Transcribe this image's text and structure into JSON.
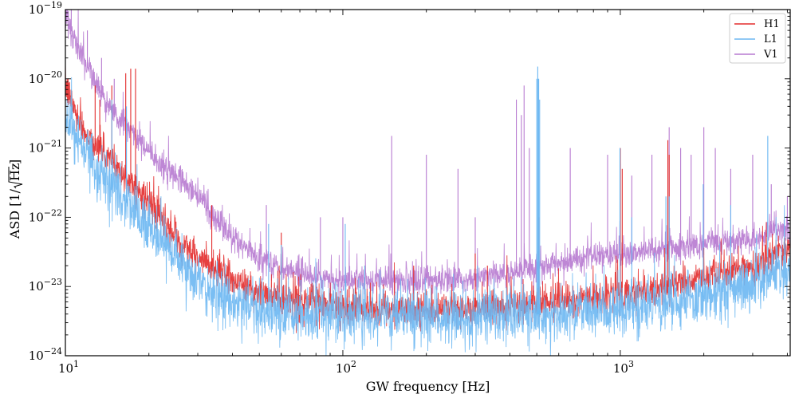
{
  "chart_data": {
    "type": "line",
    "title": "",
    "xlabel": "GW frequency [Hz]",
    "ylabel": "ASD [1/√Hz]",
    "ylabel_prefix": "ASD [1/",
    "ylabel_radicand": "Hz",
    "ylabel_suffix": "]",
    "xscale": "log",
    "yscale": "log",
    "xlim": [
      10,
      4096
    ],
    "ylim": [
      1e-24,
      1e-19
    ],
    "x_ticks": [
      {
        "value": 10,
        "base": "10",
        "exp": "1"
      },
      {
        "value": 100,
        "base": "10",
        "exp": "2"
      },
      {
        "value": 1000,
        "base": "10",
        "exp": "3"
      }
    ],
    "y_ticks": [
      {
        "value": 1e-24,
        "base": "10",
        "exp": "−24"
      },
      {
        "value": 1e-23,
        "base": "10",
        "exp": "−23"
      },
      {
        "value": 1e-22,
        "base": "10",
        "exp": "−22"
      },
      {
        "value": 1e-21,
        "base": "10",
        "exp": "−21"
      },
      {
        "value": 1e-20,
        "base": "10",
        "exp": "−20"
      },
      {
        "value": 1e-19,
        "base": "10",
        "exp": "−19"
      }
    ],
    "legend_position": "top-right",
    "series": [
      {
        "name": "H1",
        "color": "#e32b2b",
        "noise_dex": 0.12,
        "baseline": [
          [
            10,
            8e-21
          ],
          [
            11,
            3e-21
          ],
          [
            12,
            1.5e-21
          ],
          [
            14,
            8e-22
          ],
          [
            18,
            2.5e-22
          ],
          [
            22,
            1e-22
          ],
          [
            25,
            5e-23
          ],
          [
            30,
            2.5e-23
          ],
          [
            40,
            1.3e-23
          ],
          [
            50,
            8e-24
          ],
          [
            70,
            6e-24
          ],
          [
            100,
            5e-24
          ],
          [
            200,
            4.5e-24
          ],
          [
            400,
            5e-24
          ],
          [
            700,
            6.5e-24
          ],
          [
            1000,
            8e-24
          ],
          [
            1500,
            1e-23
          ],
          [
            2000,
            1.3e-23
          ],
          [
            3000,
            2e-23
          ],
          [
            4096,
            3.5e-23
          ]
        ],
        "lines": [
          [
            12.8,
            8e-21
          ],
          [
            13.3,
            5e-21
          ],
          [
            14.7,
            8e-21
          ],
          [
            16.5,
            1.2e-20
          ],
          [
            17.2,
            1.4e-20
          ],
          [
            17.9,
            1.4e-20
          ],
          [
            33.7,
            1.5e-22
          ],
          [
            35.9,
            3e-23
          ],
          [
            60,
            6e-23
          ],
          [
            120,
            2e-23
          ],
          [
            180,
            2e-23
          ],
          [
            300,
            3e-23
          ],
          [
            331.9,
            2e-23
          ],
          [
            508,
            1e-22
          ],
          [
            1000,
            1e-21
          ],
          [
            1016,
            5e-22
          ],
          [
            1484,
            1.3e-21
          ],
          [
            1500,
            8e-22
          ]
        ]
      },
      {
        "name": "L1",
        "color": "#6bb7f2",
        "noise_dex": 0.2,
        "baseline": [
          [
            10,
            3e-21
          ],
          [
            11,
            1.5e-21
          ],
          [
            12,
            8e-22
          ],
          [
            14,
            3e-22
          ],
          [
            18,
            1.2e-22
          ],
          [
            22,
            5e-23
          ],
          [
            25,
            2.5e-23
          ],
          [
            30,
            1.2e-23
          ],
          [
            40,
            6e-24
          ],
          [
            50,
            4.5e-24
          ],
          [
            70,
            4e-24
          ],
          [
            100,
            3.8e-24
          ],
          [
            200,
            3.5e-24
          ],
          [
            400,
            3.8e-24
          ],
          [
            700,
            4.2e-24
          ],
          [
            1000,
            4.5e-24
          ],
          [
            1500,
            5.5e-24
          ],
          [
            2000,
            7e-24
          ],
          [
            3000,
            1.1e-23
          ],
          [
            4096,
            2e-23
          ]
        ],
        "lines": [
          [
            14.7,
            5e-21
          ],
          [
            16.6,
            4e-21
          ],
          [
            54,
            8e-23
          ],
          [
            60,
            4e-23
          ],
          [
            102,
            8e-23
          ],
          [
            120,
            2e-23
          ],
          [
            306,
            2e-23
          ],
          [
            500,
            1e-20
          ],
          [
            504,
            1.5e-20
          ],
          [
            508,
            1e-20
          ],
          [
            512,
            5e-21
          ],
          [
            997,
            1e-21
          ],
          [
            1100,
            1e-22
          ],
          [
            1460,
            2e-22
          ],
          [
            1500,
            2e-22
          ],
          [
            1990,
            3e-22
          ],
          [
            2500,
            1.5e-22
          ],
          [
            3400,
            1.5e-21
          ]
        ]
      },
      {
        "name": "V1",
        "color": "#b77ad0",
        "noise_dex": 0.1,
        "baseline": [
          [
            10,
            8e-20
          ],
          [
            11,
            3e-20
          ],
          [
            12,
            1.5e-20
          ],
          [
            13,
            8e-21
          ],
          [
            15,
            3e-21
          ],
          [
            18,
            1.5e-21
          ],
          [
            22,
            6e-22
          ],
          [
            25,
            4e-22
          ],
          [
            30,
            2e-22
          ],
          [
            40,
            5e-23
          ],
          [
            50,
            2.5e-23
          ],
          [
            70,
            1.5e-23
          ],
          [
            100,
            1.2e-23
          ],
          [
            200,
            1.2e-23
          ],
          [
            400,
            1.5e-23
          ],
          [
            700,
            2.5e-23
          ],
          [
            1000,
            3e-23
          ],
          [
            1500,
            3.5e-23
          ],
          [
            2000,
            4e-23
          ],
          [
            3000,
            5e-23
          ],
          [
            4096,
            7e-23
          ]
        ],
        "lines": [
          [
            10.5,
            1e-19
          ],
          [
            12,
            5e-20
          ],
          [
            13.5,
            2e-20
          ],
          [
            15,
            1e-20
          ],
          [
            33,
            1e-22
          ],
          [
            53,
            1.5e-22
          ],
          [
            83,
            1e-22
          ],
          [
            100,
            1e-22
          ],
          [
            150,
            1.5e-21
          ],
          [
            200,
            8e-22
          ],
          [
            260,
            5e-22
          ],
          [
            300,
            1e-22
          ],
          [
            422,
            5e-21
          ],
          [
            440,
            3e-21
          ],
          [
            450,
            8e-21
          ],
          [
            470,
            1e-21
          ],
          [
            660,
            1e-21
          ],
          [
            900,
            8e-22
          ],
          [
            1000,
            6e-22
          ],
          [
            1100,
            4e-22
          ],
          [
            1300,
            8e-22
          ],
          [
            1500,
            2e-21
          ],
          [
            1650,
            1e-21
          ],
          [
            1800,
            8e-22
          ],
          [
            2000,
            2e-21
          ],
          [
            2200,
            1e-21
          ],
          [
            2500,
            5e-22
          ],
          [
            3000,
            8e-22
          ],
          [
            3500,
            3e-22
          ],
          [
            4000,
            2e-22
          ]
        ]
      }
    ]
  }
}
